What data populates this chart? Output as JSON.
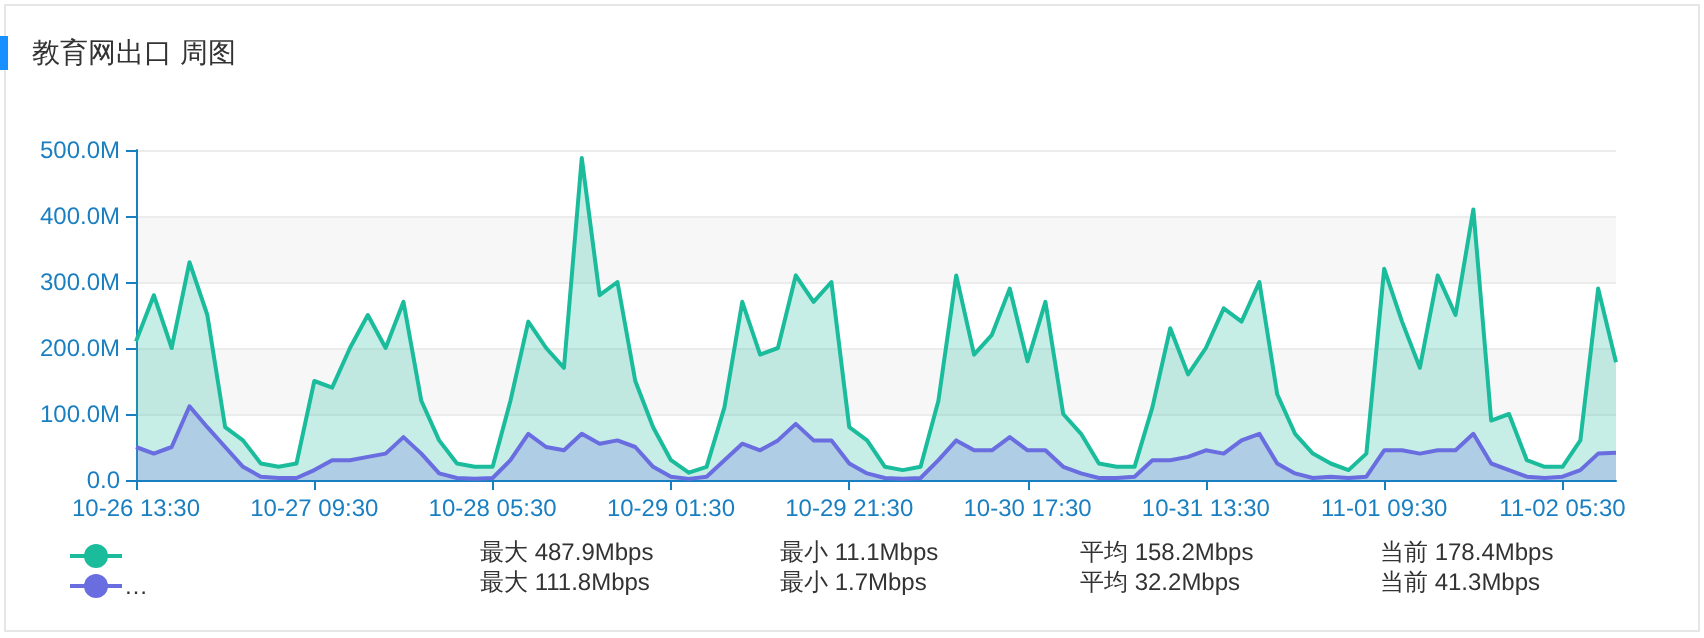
{
  "chart_data": {
    "type": "area",
    "title": "教育网出口 周图",
    "categories": [
      "10-26 13:30",
      null,
      null,
      null,
      null,
      null,
      null,
      null,
      null,
      null,
      "10-27 09:30",
      null,
      null,
      null,
      null,
      null,
      null,
      null,
      null,
      null,
      "10-28 05:30",
      null,
      null,
      null,
      null,
      null,
      null,
      null,
      null,
      null,
      "10-29 01:30",
      null,
      null,
      null,
      null,
      null,
      null,
      null,
      null,
      null,
      "10-29 21:30",
      null,
      null,
      null,
      null,
      null,
      null,
      null,
      null,
      null,
      "10-30 17:30",
      null,
      null,
      null,
      null,
      null,
      null,
      null,
      null,
      null,
      "10-31 13:30",
      null,
      null,
      null,
      null,
      null,
      null,
      null,
      null,
      null,
      "11-01 09:30",
      null,
      null,
      null,
      null,
      null,
      null,
      null,
      null,
      null,
      "11-02 05:30",
      null,
      null,
      null
    ],
    "series": [
      {
        "color": "#1abc9c",
        "values": [
          210,
          280,
          200,
          330,
          250,
          80,
          60,
          25,
          20,
          25,
          150,
          140,
          200,
          250,
          200,
          270,
          120,
          60,
          25,
          20,
          20,
          120,
          240,
          200,
          170,
          487.9,
          280,
          300,
          150,
          80,
          30,
          11.1,
          20,
          110,
          270,
          190,
          200,
          310,
          270,
          300,
          80,
          60,
          20,
          15,
          20,
          120,
          310,
          190,
          220,
          290,
          180,
          270,
          100,
          70,
          25,
          20,
          20,
          110,
          230,
          160,
          200,
          260,
          240,
          300,
          130,
          70,
          40,
          25,
          15,
          40,
          320,
          240,
          170,
          310,
          250,
          410,
          90,
          100,
          30,
          20,
          20,
          60,
          290,
          178.4
        ]
      },
      {
        "name": "…",
        "color": "#6a6de0",
        "values": [
          50,
          40,
          50,
          111.8,
          80,
          50,
          20,
          5,
          3,
          3,
          15,
          30,
          30,
          35,
          40,
          65,
          40,
          10,
          3,
          2,
          3,
          30,
          70,
          50,
          45,
          70,
          55,
          60,
          50,
          20,
          5,
          1.7,
          5,
          30,
          55,
          45,
          60,
          85,
          60,
          60,
          25,
          10,
          3,
          2,
          3,
          30,
          60,
          45,
          45,
          65,
          45,
          45,
          20,
          10,
          3,
          3,
          5,
          30,
          30,
          35,
          45,
          40,
          60,
          70,
          25,
          10,
          3,
          5,
          3,
          5,
          45,
          45,
          40,
          45,
          45,
          70,
          25,
          15,
          5,
          3,
          5,
          15,
          40,
          41.3
        ]
      }
    ],
    "ylim": [
      0,
      500
    ],
    "yticks": [
      {
        "value": 0,
        "label": "0.0"
      },
      {
        "value": 100,
        "label": "100.0M"
      },
      {
        "value": 200,
        "label": "200.0M"
      },
      {
        "value": 300,
        "label": "300.0M"
      },
      {
        "value": 400,
        "label": "400.0M"
      },
      {
        "value": 500,
        "label": "500.0M"
      }
    ],
    "grid": "y",
    "legend": "bottom left",
    "annotations": [
      "最大 487.9Mbps",
      "最小 11.1Mbps",
      "平均 158.2Mbps",
      "当前 178.4Mbps",
      "最大 111.8Mbps",
      "最小 1.7Mbps",
      "平均 32.2Mbps",
      "当前 41.3Mbps"
    ]
  }
}
